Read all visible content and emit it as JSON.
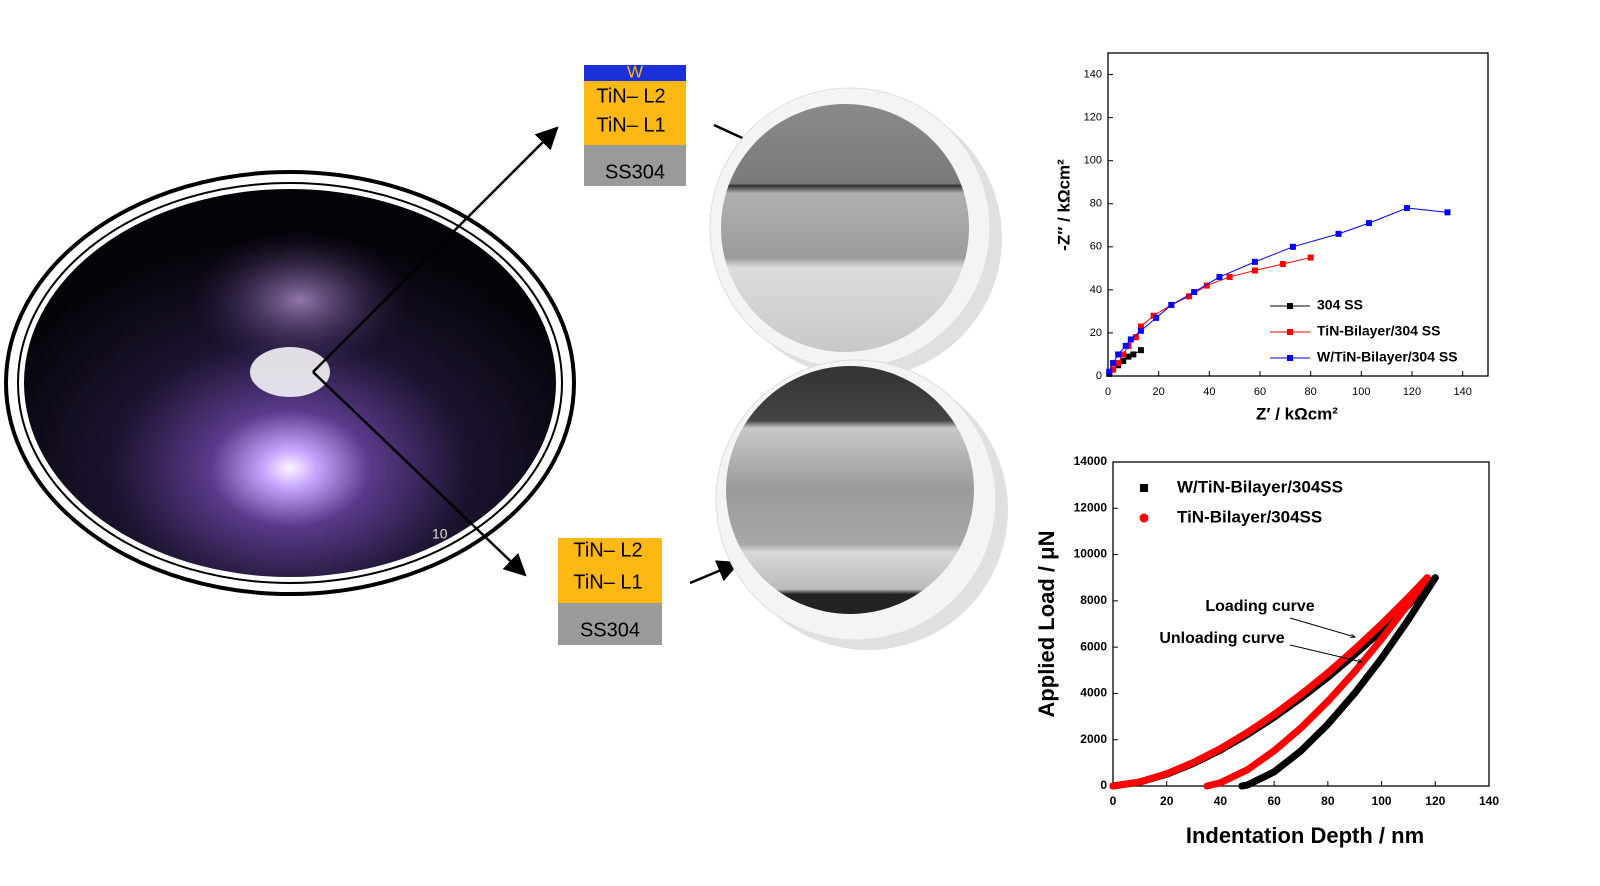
{
  "photo": {
    "scale_text": "10"
  },
  "layer_stacks": [
    {
      "layers": [
        "W",
        "TiN– L2",
        "TiN– L1",
        "SS304"
      ]
    },
    {
      "layers": [
        "TiN– L2",
        "TiN– L1",
        "SS304"
      ]
    }
  ],
  "chart_data": [
    {
      "type": "line",
      "xlabel": "Z′ / kΩcm²",
      "ylabel": "-Z″ / kΩcm²",
      "xlim": [
        0,
        150
      ],
      "ylim": [
        0,
        150
      ],
      "xticks": [
        0,
        20,
        40,
        60,
        80,
        100,
        120,
        140
      ],
      "yticks": [
        0,
        20,
        40,
        60,
        80,
        100,
        120,
        140
      ],
      "legend": "lower right",
      "marker": "square",
      "series": [
        {
          "name": "304 SS",
          "color": "#000000",
          "x": [
            0.5,
            2,
            4,
            6,
            8,
            10,
            13
          ],
          "values": [
            1,
            3,
            5,
            7,
            9,
            10,
            12
          ]
        },
        {
          "name": "TiN-Bilayer/304 SS",
          "color": "#ff0000",
          "x": [
            2,
            4,
            6,
            8,
            11,
            13,
            18,
            25,
            32,
            39,
            48,
            58,
            69,
            80
          ],
          "values": [
            3,
            6,
            10,
            14,
            18,
            23,
            28,
            33,
            37,
            42,
            46,
            49,
            52,
            55
          ]
        },
        {
          "name": "W/TiN-Bilayer/304 SS",
          "color": "#0000ff",
          "x": [
            0.5,
            2,
            4,
            7,
            9,
            13,
            19,
            25,
            34,
            44,
            58,
            73,
            91,
            103,
            118,
            134
          ],
          "values": [
            2,
            6,
            10,
            14,
            17,
            21,
            27,
            33,
            39,
            46,
            53,
            60,
            66,
            71,
            78,
            76
          ]
        }
      ]
    },
    {
      "type": "line",
      "xlabel": "Indentation Depth / nm",
      "ylabel": "Applied Load / μN",
      "xlim": [
        0,
        140
      ],
      "ylim": [
        0,
        14000
      ],
      "xticks": [
        0,
        20,
        40,
        60,
        80,
        100,
        120,
        140
      ],
      "yticks": [
        0,
        2000,
        4000,
        6000,
        8000,
        10000,
        12000,
        14000
      ],
      "legend": "upper left",
      "marker": "dense",
      "annotations": [
        "Loading curve",
        "Unloading curve"
      ],
      "series": [
        {
          "name": "W/TiN-Bilayer/304SS",
          "color": "#000000",
          "x": [
            0,
            10,
            20,
            30,
            40,
            50,
            60,
            70,
            80,
            90,
            100,
            110,
            120,
            110,
            100,
            90,
            80,
            70,
            60,
            50,
            48
          ],
          "values": [
            0,
            170,
            510,
            980,
            1550,
            2220,
            2970,
            3800,
            4700,
            5680,
            6720,
            7830,
            9000,
            7190,
            5520,
            4010,
            2670,
            1520,
            610,
            40,
            0
          ]
        },
        {
          "name": "TiN-Bilayer/304SS",
          "color": "#ff0000",
          "x": [
            0,
            10,
            20,
            30,
            40,
            50,
            60,
            70,
            80,
            90,
            100,
            110,
            117,
            110,
            100,
            90,
            80,
            70,
            60,
            50,
            40,
            35
          ],
          "values": [
            0,
            177,
            531,
            1020,
            1614,
            2311,
            3092,
            3956,
            4893,
            5913,
            6996,
            8150,
            9000,
            7870,
            6350,
            4940,
            3660,
            2510,
            1520,
            700,
            140,
            0
          ]
        }
      ]
    }
  ]
}
